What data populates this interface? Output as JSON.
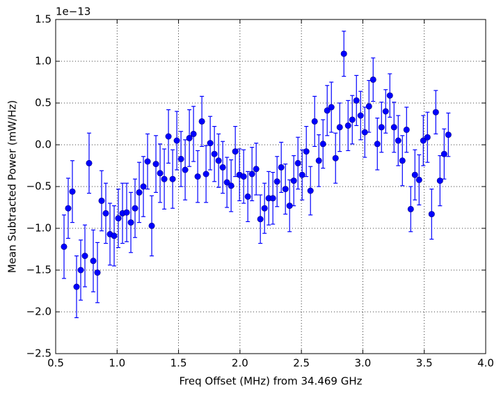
{
  "chart_data": {
    "type": "errorbar-scatter",
    "x_label": "Freq Offset (MHz) from 34.469 GHz",
    "y_label": "Mean Subtracted Power (mW/Hz)",
    "y_offset_label": "1e−13",
    "color": "#0000ff",
    "grid": true,
    "xlim": [
      0.5,
      4.0
    ],
    "ylim": [
      -2.5,
      1.5
    ],
    "xticks": [
      0.5,
      {
        "value": 1,
        "label": "1.0"
      },
      1.5,
      {
        "value": 2,
        "label": "2.0"
      },
      2.5,
      {
        "value": 3,
        "label": "3.0"
      },
      3.5,
      {
        "value": 4,
        "label": "4.0"
      }
    ],
    "yticks": [
      {
        "value": -2.5,
        "label": "−2.5"
      },
      {
        "value": -2,
        "label": "−2.0"
      },
      {
        "value": -1.5,
        "label": "−1.5"
      },
      {
        "value": -1,
        "label": "−1.0"
      },
      {
        "value": -0.5,
        "label": "−0.5"
      },
      {
        "value": 0,
        "label": "0.0"
      },
      0.5,
      {
        "value": 1,
        "label": "1.0"
      },
      1.5
    ],
    "x": [
      0.568,
      0.602,
      0.636,
      0.67,
      0.704,
      0.738,
      0.772,
      0.806,
      0.84,
      0.874,
      0.908,
      0.942,
      0.976,
      1.01,
      1.044,
      1.078,
      1.112,
      1.146,
      1.18,
      1.214,
      1.248,
      1.282,
      1.316,
      1.35,
      1.384,
      1.418,
      1.452,
      1.486,
      1.52,
      1.554,
      1.588,
      1.622,
      1.656,
      1.69,
      1.724,
      1.758,
      1.792,
      1.826,
      1.86,
      1.894,
      1.928,
      1.962,
      1.996,
      2.03,
      2.064,
      2.098,
      2.132,
      2.166,
      2.2,
      2.234,
      2.268,
      2.302,
      2.336,
      2.37,
      2.404,
      2.438,
      2.472,
      2.506,
      2.54,
      2.574,
      2.608,
      2.642,
      2.676,
      2.71,
      2.744,
      2.778,
      2.812,
      2.846,
      2.88,
      2.914,
      2.948,
      2.982,
      3.016,
      3.05,
      3.084,
      3.118,
      3.152,
      3.186,
      3.22,
      3.254,
      3.288,
      3.322,
      3.356,
      3.39,
      3.424,
      3.458,
      3.492,
      3.526,
      3.56,
      3.594,
      3.628,
      3.662,
      3.696
    ],
    "values": [
      -1.22,
      -0.76,
      -0.56,
      -1.7,
      -1.5,
      -1.33,
      -0.22,
      -1.39,
      -1.53,
      -0.67,
      -0.82,
      -1.07,
      -1.09,
      -0.88,
      -0.82,
      -0.81,
      -0.93,
      -0.76,
      -0.57,
      -0.5,
      -0.2,
      -0.97,
      -0.23,
      -0.34,
      -0.41,
      0.1,
      -0.41,
      0.05,
      -0.17,
      -0.3,
      0.08,
      0.13,
      -0.38,
      0.28,
      -0.35,
      0.02,
      -0.11,
      -0.19,
      -0.27,
      -0.45,
      -0.49,
      -0.08,
      -0.36,
      -0.38,
      -0.62,
      -0.35,
      -0.29,
      -0.89,
      -0.76,
      -0.64,
      -0.64,
      -0.44,
      -0.27,
      -0.53,
      -0.73,
      -0.43,
      -0.22,
      -0.36,
      -0.08,
      -0.55,
      0.28,
      -0.19,
      0.01,
      0.41,
      0.45,
      -0.16,
      0.21,
      1.09,
      0.23,
      0.3,
      0.53,
      0.35,
      0.15,
      0.46,
      0.78,
      0.01,
      0.21,
      0.4,
      0.59,
      0.21,
      0.05,
      -0.19,
      0.18,
      -0.77,
      -0.36,
      -0.42,
      0.05,
      0.09,
      -0.83,
      0.39,
      -0.43,
      -0.11,
      0.12
    ],
    "errors": [
      0.38,
      0.36,
      0.37,
      0.37,
      0.36,
      0.37,
      0.36,
      0.37,
      0.36,
      0.36,
      0.36,
      0.37,
      0.36,
      0.35,
      0.36,
      0.35,
      0.36,
      0.35,
      0.36,
      0.36,
      0.33,
      0.36,
      0.34,
      0.35,
      0.36,
      0.32,
      0.35,
      0.35,
      0.33,
      0.36,
      0.34,
      0.33,
      0.31,
      0.3,
      0.34,
      0.32,
      0.33,
      0.32,
      0.31,
      0.3,
      0.31,
      0.3,
      0.31,
      0.32,
      0.3,
      0.32,
      0.31,
      0.29,
      0.3,
      0.32,
      0.31,
      0.3,
      0.3,
      0.3,
      0.31,
      0.3,
      0.31,
      0.3,
      0.3,
      0.29,
      0.3,
      0.31,
      0.29,
      0.3,
      0.3,
      0.3,
      0.29,
      0.27,
      0.3,
      0.29,
      0.3,
      0.29,
      0.3,
      0.31,
      0.26,
      0.31,
      0.3,
      0.26,
      0.26,
      0.3,
      0.3,
      0.3,
      0.27,
      0.27,
      0.3,
      0.3,
      0.3,
      0.3,
      0.3,
      0.26,
      0.3,
      0.3,
      0.26
    ]
  }
}
